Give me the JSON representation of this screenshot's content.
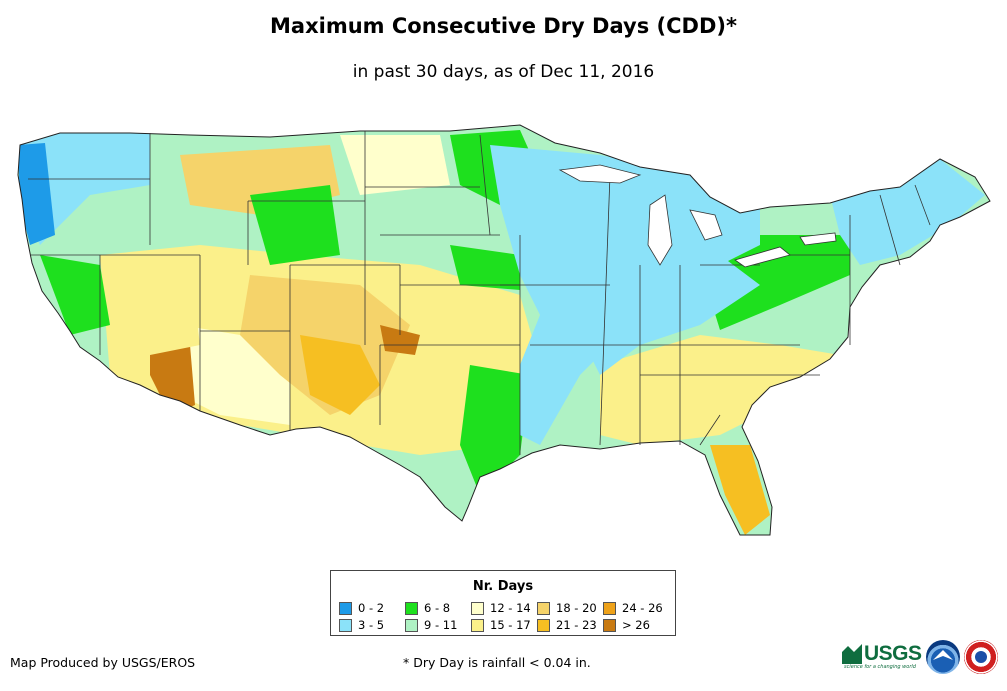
{
  "title": "Maximum Consecutive Dry Days (CDD)*",
  "subtitle": "in past 30 days, as of Dec 11, 2016",
  "legend": {
    "title": "Nr. Days",
    "classes": [
      {
        "label": "0 - 2",
        "color": "#1e9be8"
      },
      {
        "label": "6 - 8",
        "color": "#1ee01e"
      },
      {
        "label": "12 - 14",
        "color": "#ffffcc"
      },
      {
        "label": "18 - 20",
        "color": "#f5d36a"
      },
      {
        "label": "24 - 26",
        "color": "#eea21a"
      },
      {
        "label": "3 - 5",
        "color": "#8be2f9"
      },
      {
        "label": "9 - 11",
        "color": "#aff2c4"
      },
      {
        "label": "15 - 17",
        "color": "#fbf08a"
      },
      {
        "label": "21 - 23",
        "color": "#f6bf22"
      },
      {
        "label": "> 26",
        "color": "#c87a12"
      }
    ]
  },
  "footer": {
    "producer": "Map Produced by USGS/EROS",
    "note": "* Dry Day is rainfall < 0.04 in."
  },
  "logos": {
    "usgs": "USGS",
    "usgs_tagline": "science for a changing world",
    "noaa_icon": "noaa-logo-icon",
    "nws_icon": "nws-logo-icon"
  }
}
